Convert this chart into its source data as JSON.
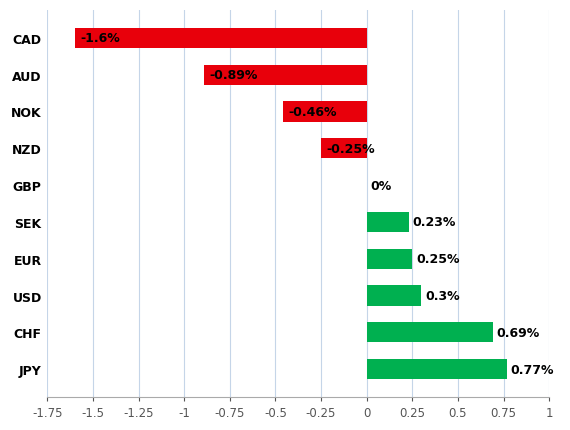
{
  "categories": [
    "CAD",
    "AUD",
    "NOK",
    "NZD",
    "GBP",
    "SEK",
    "EUR",
    "USD",
    "CHF",
    "JPY"
  ],
  "values": [
    -1.6,
    -0.89,
    -0.46,
    -0.25,
    0.0,
    0.23,
    0.25,
    0.3,
    0.69,
    0.77
  ],
  "labels": [
    "-1.6%",
    "-0.89%",
    "-0.46%",
    "-0.25%",
    "0%",
    "0.23%",
    "0.25%",
    "0.3%",
    "0.69%",
    "0.77%"
  ],
  "bar_color_negative": "#e8000b",
  "bar_color_positive": "#00b050",
  "background_color": "#ffffff",
  "xlim": [
    -1.75,
    1.0
  ],
  "xticks": [
    -1.75,
    -1.5,
    -1.25,
    -1.0,
    -0.75,
    -0.5,
    -0.25,
    0.0,
    0.25,
    0.5,
    0.75,
    1.0
  ],
  "xtick_labels": [
    "-1.75",
    "-1.5",
    "-1.25",
    "-1",
    "-0.75",
    "-0.5",
    "-0.25",
    "0",
    "0.25",
    "0.5",
    "0.75",
    "1"
  ],
  "grid_color": "#c5d5e8",
  "label_fontsize": 9,
  "tick_fontsize": 8.5,
  "ytick_fontsize": 9,
  "bar_height": 0.55
}
